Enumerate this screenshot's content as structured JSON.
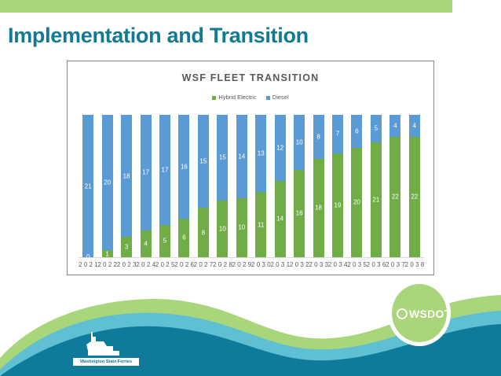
{
  "slide": {
    "title": "Implementation and Transition",
    "colors": {
      "accent_green": "#a9d67a",
      "title_teal": "#127a93",
      "wave_dark": "#0f7b9a",
      "wave_light": "#5fc0d4"
    },
    "logos": {
      "left": "Washington State Ferries",
      "right": "WSDOT"
    }
  },
  "chart_data": {
    "type": "bar",
    "stacked": "percent",
    "title": "WSF FLEET TRANSITION",
    "xlabel": "",
    "ylabel": "",
    "legend_position": "top",
    "grid": false,
    "categories": [
      "2021",
      "2022",
      "2023",
      "2024",
      "2025",
      "2026",
      "2027",
      "2028",
      "2029",
      "2030",
      "2031",
      "2032",
      "2033",
      "2034",
      "2035",
      "2036",
      "2037",
      "2038"
    ],
    "series": [
      {
        "name": "Hybrid Electric",
        "color": "#70ad47",
        "values": [
          0,
          1,
          3,
          4,
          5,
          6,
          8,
          10,
          10,
          11,
          14,
          16,
          18,
          19,
          20,
          21,
          22,
          22
        ]
      },
      {
        "name": "Diesel",
        "color": "#5b9bd5",
        "values": [
          21,
          20,
          18,
          17,
          17,
          16,
          15,
          15,
          14,
          13,
          12,
          10,
          8,
          7,
          6,
          5,
          4,
          4
        ]
      }
    ]
  }
}
